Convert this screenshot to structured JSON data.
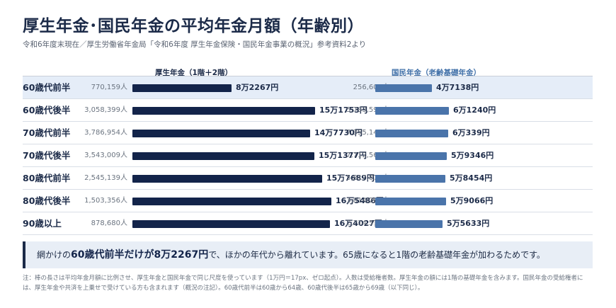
{
  "header": {
    "title": "厚生年金･国民年金の平均年金月額（年齢別）",
    "subtitle": "令和6年度末現在／厚生労働省年金局「令和6年度 厚生年金保険・国民年金事業の概況」参考資料2より"
  },
  "chart_data": {
    "type": "bar",
    "categories": [
      "60歳代前半",
      "60歳代後半",
      "70歳代前半",
      "70歳代後半",
      "80歳代前半",
      "80歳代後半",
      "90歳以上"
    ],
    "highlighted_category": "60歳代前半",
    "series": [
      {
        "name": "厚生年金（1階＋2階）",
        "color": "#13244a",
        "values": [
          82267,
          151753,
          147730,
          151377,
          157689,
          165486,
          164027
        ],
        "value_labels": [
          "8万2267円",
          "15万1753円",
          "14万7730円",
          "15万1377円",
          "15万7689円",
          "16万5486円",
          "16万4027円"
        ],
        "counts": [
          "770,159人",
          "3,058,399人",
          "3,786,954人",
          "3,543,009人",
          "2,545,139人",
          "1,503,356人",
          "878,680人"
        ]
      },
      {
        "name": "国民年金（老齢基礎年金）",
        "color": "#4a74aa",
        "values": [
          47138,
          61240,
          60339,
          59346,
          58454,
          59066,
          55633
        ],
        "value_labels": [
          "4万7138円",
          "6万1240円",
          "6万339円",
          "5万9346円",
          "5万8454円",
          "5万9066円",
          "5万5633円"
        ],
        "counts": [
          "256,603人",
          "5,783,597人",
          "7,355,141人",
          "7,712,565人",
          "5,817,876人",
          "3,814,261人",
          "2,714,574人"
        ]
      }
    ]
  },
  "callout": {
    "prefix": "網かけの",
    "emphasis": "60歳代前半だけが8万2267円",
    "suffix": "で、ほかの年代から離れています。65歳になると1階の老齢基礎年金が加わるためです。"
  },
  "note": "注：棒の長さは平均年金月額に比例させ、厚生年金と国民年金で同じ尺度を使っています（1万円＝17px、ゼロ起点）。人数は受給権者数。厚生年金の額には1階の基礎年金を含みます。国民年金の受給権者には、厚生年金や共済を上乗せで受けている方も含まれます（概況の注記）。60歳代前半は60歳から64歳、60歳代後半は65歳から69歳（以下同じ）。"
}
